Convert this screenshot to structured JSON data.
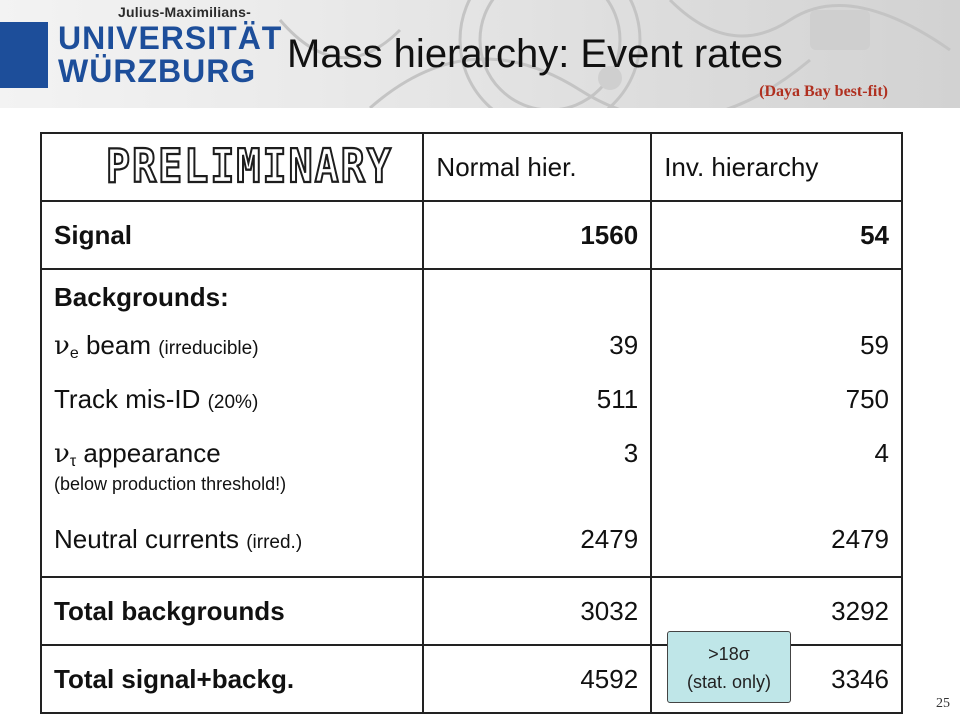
{
  "logo": {
    "subline": "Julius-Maximilians-",
    "line1": "UNIVERSITÄT",
    "line2": "WÜRZBURG"
  },
  "title": "Mass hierarchy: Event rates",
  "subtitle": "(Daya Bay best-fit)",
  "stamp": "PRELIMINARY",
  "table": {
    "headers": [
      "Normal hier.",
      "Inv. hierarchy"
    ],
    "signal": {
      "label": "Signal",
      "normal": "1560",
      "inverted": "54"
    },
    "backgrounds": {
      "heading": "Backgrounds:",
      "rows": [
        {
          "symbol": "ν",
          "sub": "e",
          "label": " beam",
          "note": "(irreducible)",
          "normal": "39",
          "inverted": "59"
        },
        {
          "label": "Track mis-ID",
          "note": "(20%)",
          "normal": "511",
          "inverted": "750"
        },
        {
          "symbol": "ν",
          "sub": "τ",
          "label": " appearance",
          "note": "(below production threshold!)",
          "normal": "3",
          "inverted": "4"
        },
        {
          "label": "Neutral currents",
          "note": "(irred.)",
          "normal": "2479",
          "inverted": "2479"
        }
      ]
    },
    "total_backgrounds": {
      "label": "Total backgrounds",
      "normal": "3032",
      "inverted": "3292"
    },
    "total_signal_backg": {
      "label": "Total signal+backg.",
      "normal": "4592",
      "inverted": "3346"
    }
  },
  "callout": {
    "line1": ">18σ",
    "line2": "(stat. only)"
  },
  "page_number": "25",
  "colors": {
    "brand_blue": "#1d4e9a",
    "highlight_red": "#e8401c",
    "callout_bg": "#bfe6e8",
    "subtitle": "#b03020"
  }
}
